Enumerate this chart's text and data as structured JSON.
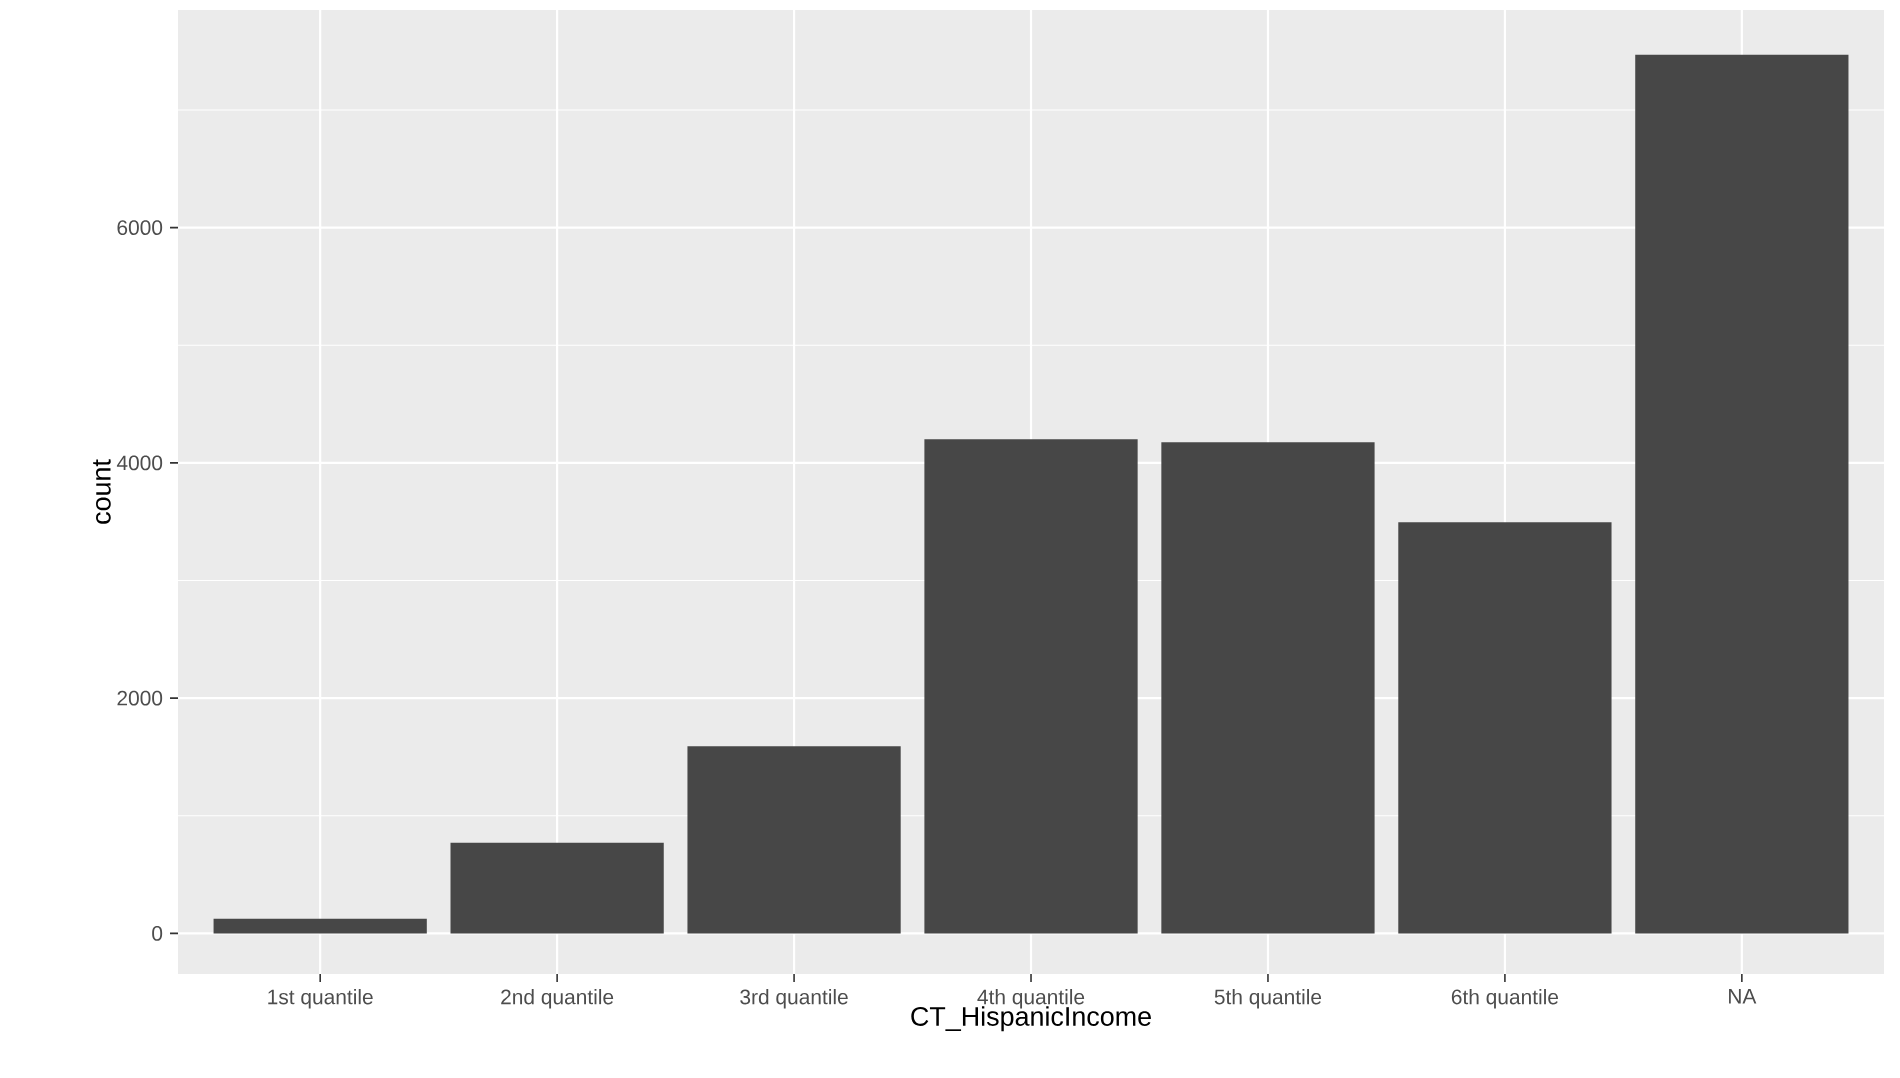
{
  "chart_data": {
    "type": "bar",
    "xlabel": "CT_HispanicIncome",
    "ylabel": "count",
    "categories": [
      "1st quantile",
      "2nd quantile",
      "3rd quantile",
      "4th quantile",
      "5th quantile",
      "6th quantile",
      "NA"
    ],
    "values": [
      125,
      770,
      1590,
      4200,
      4175,
      3495,
      7470
    ],
    "color": "#474747",
    "ylim": [
      -345,
      7850
    ],
    "yticks": [
      0,
      2000,
      4000,
      6000
    ],
    "grid": true
  }
}
